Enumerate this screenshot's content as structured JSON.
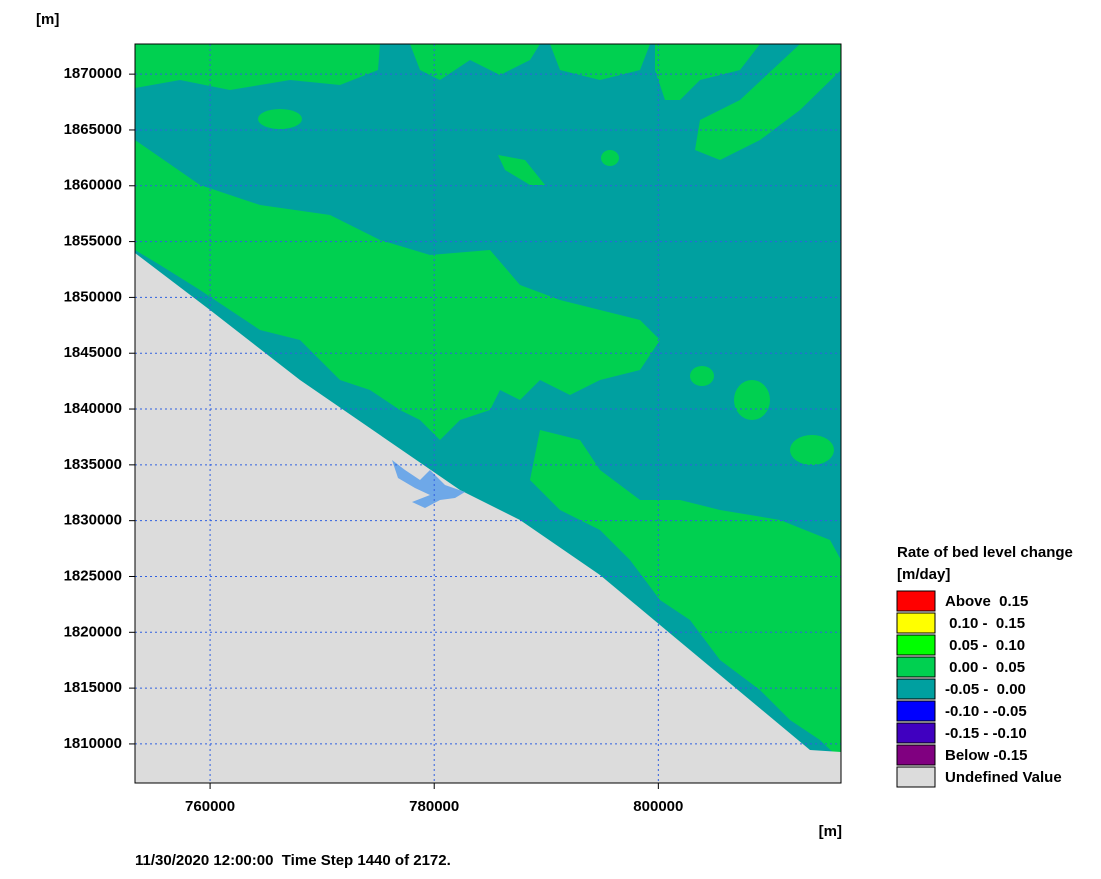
{
  "chart_data": {
    "type": "map",
    "x_unit": "[m]",
    "y_unit": "[m]",
    "xlim": [
      753300,
      816300
    ],
    "xticks": [
      760000,
      780000,
      800000
    ],
    "ylim": [
      1806500,
      1872700
    ],
    "yticks": [
      1810000,
      1815000,
      1820000,
      1825000,
      1830000,
      1835000,
      1840000,
      1845000,
      1850000,
      1855000,
      1860000,
      1865000,
      1870000
    ],
    "grid": true,
    "footer": "11/30/2020 12:00:00  Time Step 1440 of 2172.",
    "legend": {
      "title": "Rate of bed level change",
      "unit": "[m/day]",
      "entries": [
        {
          "label": "Above  0.15",
          "color": "#ff0000"
        },
        {
          "label": " 0.10 -  0.15",
          "color": "#ffff00"
        },
        {
          "label": " 0.05 -  0.10",
          "color": "#00ff00"
        },
        {
          "label": " 0.00 -  0.05",
          "color": "#00d050"
        },
        {
          "label": "-0.05 -  0.00",
          "color": "#00a0a0"
        },
        {
          "label": "-0.10 - -0.05",
          "color": "#0000ff"
        },
        {
          "label": "-0.15 - -0.10",
          "color": "#4000c0"
        },
        {
          "label": "Below -0.15",
          "color": "#800080"
        },
        {
          "label": "Undefined Value",
          "color": "#dcdcdc"
        }
      ]
    }
  }
}
